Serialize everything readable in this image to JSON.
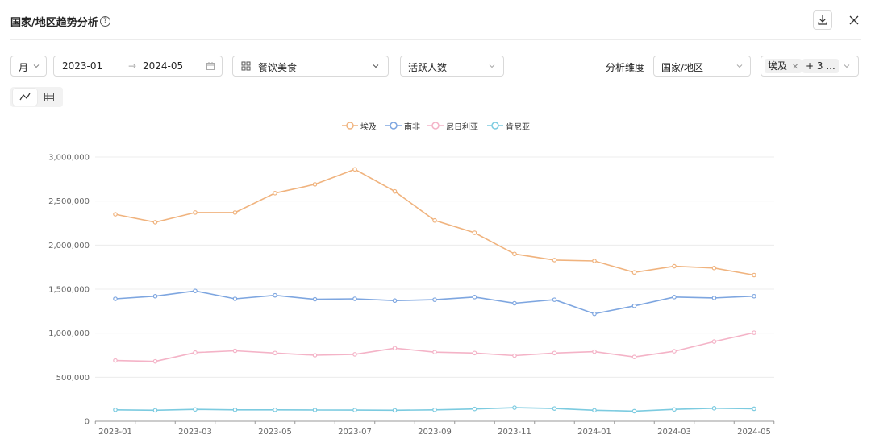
{
  "header": {
    "title": "国家/地区趋势分析",
    "help_glyph": "?"
  },
  "filters": {
    "period": "月",
    "date_start": "2023-01",
    "date_arrow": "→",
    "date_end": "2024-05",
    "category": "餐饮美食",
    "metric": "活跃人数",
    "dimension_label": "分析维度",
    "dimension": "国家/地区",
    "selected_tag": "埃及",
    "more_tag": "+ 3 ..."
  },
  "view_toggle": {
    "active": "line-chart",
    "options": [
      "line-chart",
      "table"
    ]
  },
  "colors": {
    "埃及": "#f0b37e",
    "南非": "#7ea6e0",
    "尼日利亚": "#f4b3c7",
    "肯尼亚": "#7ccbe0"
  },
  "chart_data": {
    "type": "line",
    "x": [
      "2023-01",
      "2023-02",
      "2023-03",
      "2023-04",
      "2023-05",
      "2023-06",
      "2023-07",
      "2023-08",
      "2023-09",
      "2023-10",
      "2023-11",
      "2023-12",
      "2024-01",
      "2024-02",
      "2024-03",
      "2024-04",
      "2024-05"
    ],
    "x_tick_labels": [
      "2023-01",
      "2023-03",
      "2023-05",
      "2023-07",
      "2023-09",
      "2023-11",
      "2024-01",
      "2024-03",
      "2024-05"
    ],
    "y_ticks": [
      "0",
      "500,000",
      "1,000,000",
      "1,500,000",
      "2,000,000",
      "2,500,000",
      "3,000,000"
    ],
    "ylim": [
      0,
      3000000
    ],
    "grid": true,
    "legend_position": "top-center",
    "series": [
      {
        "name": "埃及",
        "values": [
          2350000,
          2260000,
          2370000,
          2370000,
          2590000,
          2690000,
          2860000,
          2610000,
          2280000,
          2140000,
          1900000,
          1830000,
          1820000,
          1690000,
          1760000,
          1740000,
          1660000
        ]
      },
      {
        "name": "南非",
        "values": [
          1390000,
          1420000,
          1480000,
          1390000,
          1430000,
          1385000,
          1390000,
          1370000,
          1380000,
          1410000,
          1340000,
          1380000,
          1220000,
          1310000,
          1410000,
          1400000,
          1420000
        ]
      },
      {
        "name": "尼日利亚",
        "values": [
          690000,
          680000,
          780000,
          800000,
          775000,
          750000,
          760000,
          830000,
          785000,
          775000,
          745000,
          775000,
          790000,
          730000,
          795000,
          905000,
          1005000
        ]
      },
      {
        "name": "肯尼亚",
        "values": [
          130000,
          125000,
          135000,
          130000,
          130000,
          128000,
          127000,
          125000,
          130000,
          140000,
          155000,
          145000,
          125000,
          115000,
          135000,
          148000,
          142000
        ]
      }
    ]
  }
}
